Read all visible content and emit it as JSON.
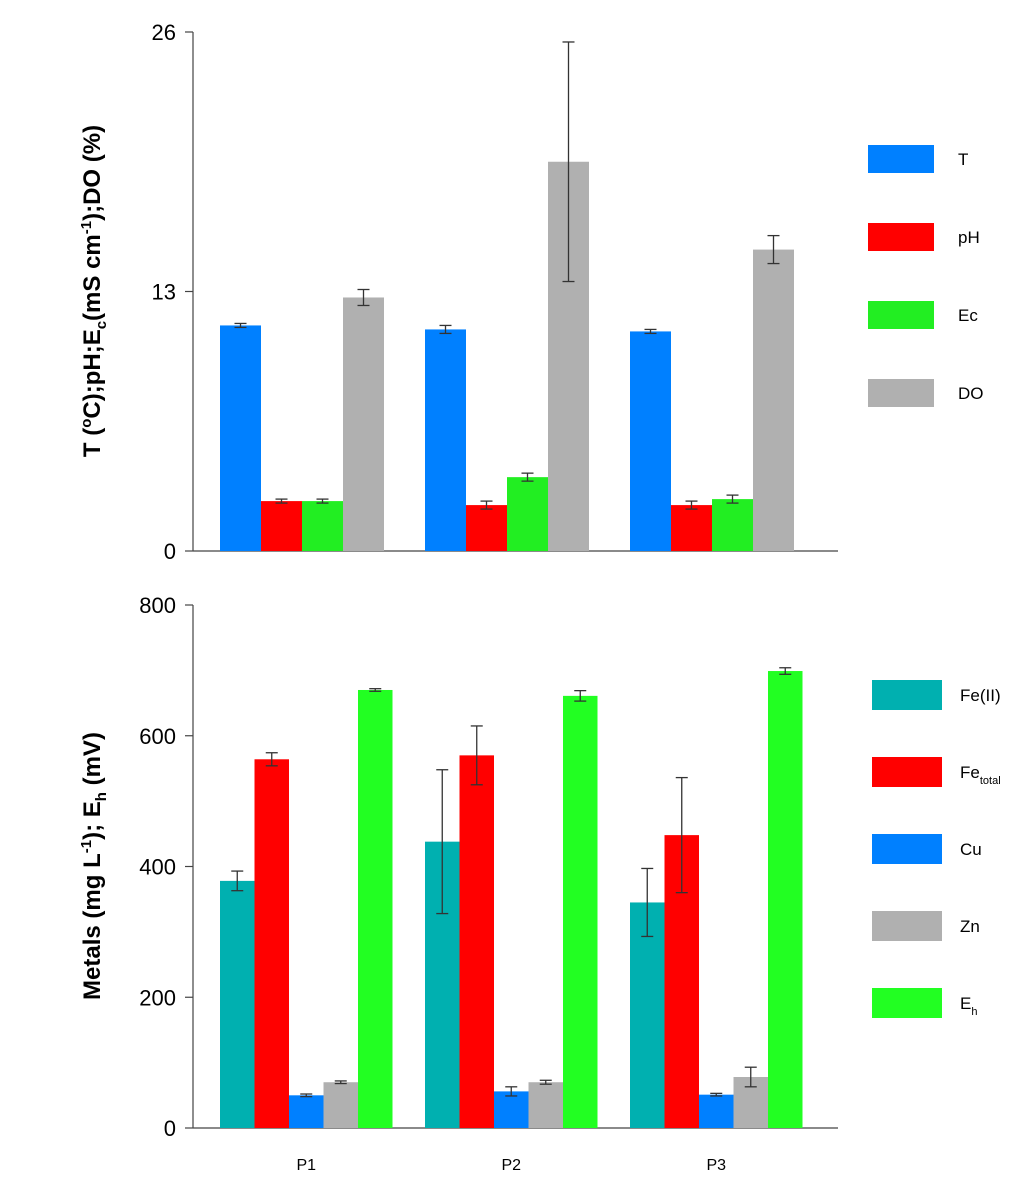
{
  "chart_data": [
    {
      "type": "bar",
      "title": "",
      "ylabel_parts": [
        "T (",
        "o",
        "C);pH;E",
        "c",
        "(mS cm",
        "-1",
        ");DO (%)"
      ],
      "xlabel": "",
      "categories": [
        "P1",
        "P2",
        "P3"
      ],
      "ylim": [
        0,
        26
      ],
      "yticks": [
        0,
        13,
        26
      ],
      "grid": false,
      "legend_position": "right",
      "series": [
        {
          "name": "T",
          "color": "#0080ff",
          "values": [
            11.3,
            11.1,
            11.0
          ],
          "errors": [
            0.1,
            0.2,
            0.1
          ]
        },
        {
          "name": "pH",
          "color": "#ff0000",
          "values": [
            2.5,
            2.3,
            2.3
          ],
          "errors": [
            0.1,
            0.2,
            0.2
          ]
        },
        {
          "name": "Ec",
          "color": "#22ee22",
          "values": [
            2.5,
            3.7,
            2.6
          ],
          "errors": [
            0.1,
            0.2,
            0.2
          ]
        },
        {
          "name": "DO",
          "color": "#b0b0b0",
          "values": [
            12.7,
            19.5,
            15.1
          ],
          "errors": [
            0.4,
            6.0,
            0.7
          ]
        }
      ]
    },
    {
      "type": "bar",
      "title": "",
      "ylabel_parts": [
        "Metals (mg L",
        "-1",
        "); E",
        "h",
        " (mV)"
      ],
      "xlabel": "",
      "categories": [
        "P1",
        "P2",
        "P3"
      ],
      "ylim": [
        0,
        800
      ],
      "yticks": [
        0,
        200,
        400,
        600,
        800
      ],
      "grid": false,
      "legend_position": "right",
      "series": [
        {
          "name": "Fe(II)",
          "name_sub": "",
          "color": "#00b0b0",
          "values": [
            378,
            438,
            345
          ],
          "errors": [
            15,
            110,
            52
          ]
        },
        {
          "name": "Fe",
          "name_sub": "total",
          "color": "#ff0000",
          "values": [
            564,
            570,
            448
          ],
          "errors": [
            10,
            45,
            88
          ]
        },
        {
          "name": "Cu",
          "name_sub": "",
          "color": "#0080ff",
          "values": [
            50,
            56,
            51
          ],
          "errors": [
            2,
            7,
            2
          ]
        },
        {
          "name": "Zn",
          "name_sub": "",
          "color": "#b0b0b0",
          "values": [
            70,
            70,
            78
          ],
          "errors": [
            2,
            3,
            15
          ]
        },
        {
          "name": "E",
          "name_sub": "h",
          "color": "#22ff22",
          "values": [
            670,
            661,
            699
          ],
          "errors": [
            2,
            8,
            5
          ]
        }
      ]
    }
  ]
}
